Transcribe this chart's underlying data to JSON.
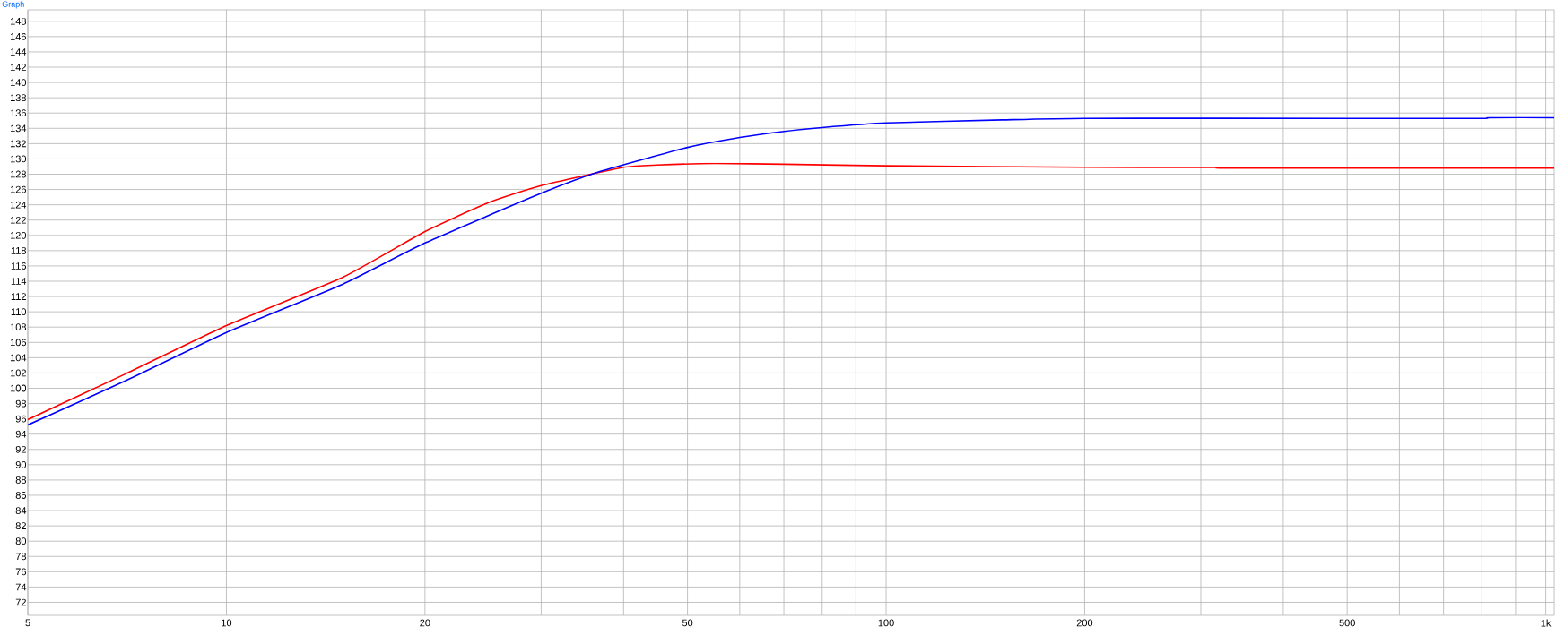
{
  "chart_data": {
    "type": "line",
    "title": "Graph",
    "log": "x",
    "grid": true,
    "xlim": [
      5,
      1030
    ],
    "ylim": [
      70.3,
      149.5
    ],
    "xticks": [
      5,
      10,
      20,
      {
        "value": 30,
        "label": null
      },
      {
        "value": 40,
        "label": null
      },
      50,
      {
        "value": 60,
        "label": null
      },
      {
        "value": 70,
        "label": null
      },
      {
        "value": 80,
        "label": null
      },
      {
        "value": 90,
        "label": null
      },
      100,
      200,
      {
        "value": 300,
        "label": null
      },
      {
        "value": 400,
        "label": null
      },
      500,
      {
        "value": 600,
        "label": null
      },
      {
        "value": 700,
        "label": null
      },
      {
        "value": 800,
        "label": null
      },
      {
        "value": 900,
        "label": null
      },
      {
        "value": 1000,
        "label": "1k"
      }
    ],
    "yticks": [
      72,
      74,
      76,
      78,
      80,
      82,
      84,
      86,
      88,
      90,
      92,
      94,
      96,
      98,
      100,
      102,
      104,
      106,
      108,
      110,
      112,
      114,
      116,
      118,
      120,
      122,
      124,
      126,
      128,
      130,
      132,
      134,
      136,
      138,
      140,
      142,
      144,
      146,
      148
    ],
    "series": [
      {
        "color": "#ff0000",
        "x": [
          5,
          7,
          10,
          15,
          20,
          25,
          30,
          40,
          45,
          55,
          70,
          100,
          200,
          320,
          330,
          1030
        ],
        "values": [
          95.9,
          101.8,
          108.2,
          114.5,
          120.5,
          124.3,
          126.5,
          128.9,
          129.2,
          129.4,
          129.3,
          129.1,
          128.9,
          128.9,
          128.8,
          128.8
        ]
      },
      {
        "color": "#0000ff",
        "x": [
          5,
          7,
          10,
          15,
          20,
          30,
          37,
          50,
          60,
          70,
          80,
          100,
          150,
          200,
          500,
          800,
          820,
          1030
        ],
        "values": [
          95.2,
          100.9,
          107.3,
          113.6,
          119.0,
          125.5,
          128.4,
          131.5,
          132.8,
          133.6,
          134.1,
          134.7,
          135.1,
          135.3,
          135.3,
          135.3,
          135.4,
          135.4
        ]
      }
    ]
  }
}
